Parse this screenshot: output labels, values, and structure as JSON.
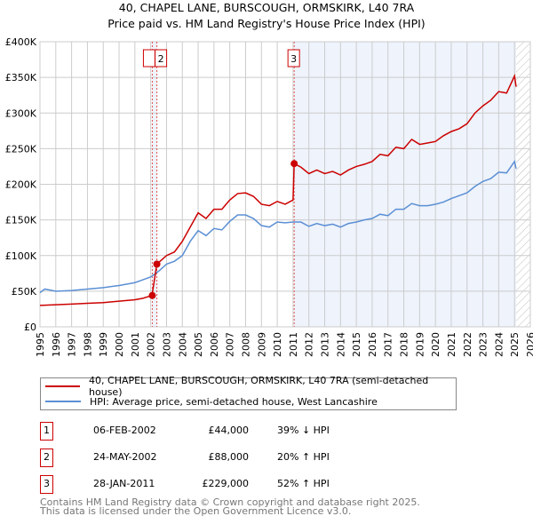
{
  "chart_data": {
    "type": "line",
    "title": "40, CHAPEL LANE, BURSCOUGH, ORMSKIRK, L40 7RA",
    "subtitle": "Price paid vs. HM Land Registry's House Price Index (HPI)",
    "xlim": [
      1995,
      2026
    ],
    "ylim": [
      0,
      400000
    ],
    "x_ticks": [
      "1995",
      "1996",
      "1997",
      "1998",
      "1999",
      "2000",
      "2001",
      "2002",
      "2003",
      "2004",
      "2005",
      "2006",
      "2007",
      "2008",
      "2009",
      "2010",
      "2011",
      "2012",
      "2013",
      "2014",
      "2015",
      "2016",
      "2017",
      "2018",
      "2019",
      "2020",
      "2021",
      "2022",
      "2023",
      "2024",
      "2025",
      "2026"
    ],
    "y_ticks": [
      {
        "v": 0,
        "label": "£0"
      },
      {
        "v": 50000,
        "label": "£50K"
      },
      {
        "v": 100000,
        "label": "£100K"
      },
      {
        "v": 150000,
        "label": "£150K"
      },
      {
        "v": 200000,
        "label": "£200K"
      },
      {
        "v": 250000,
        "label": "£250K"
      },
      {
        "v": 300000,
        "label": "£300K"
      },
      {
        "v": 350000,
        "label": "£350K"
      },
      {
        "v": 400000,
        "label": "£400K"
      }
    ],
    "series": [
      {
        "name": "40, CHAPEL LANE, BURSCOUGH, ORMSKIRK, L40 7RA (semi-detached house)",
        "color": "#cc0000",
        "x": [
          1995,
          1996,
          1997,
          1998,
          1999,
          2000,
          2001,
          2001.5,
          2002.08,
          2002.39,
          2003,
          2003.5,
          2004,
          2004.5,
          2005,
          2005.5,
          2006,
          2006.5,
          2007,
          2007.5,
          2008,
          2008.5,
          2009,
          2009.5,
          2010,
          2010.5,
          2011.0,
          2011.07,
          2011.5,
          2012,
          2012.5,
          2013,
          2013.5,
          2014,
          2014.5,
          2015,
          2015.5,
          2016,
          2016.5,
          2017,
          2017.5,
          2018,
          2018.5,
          2019,
          2019.5,
          2020,
          2020.5,
          2021,
          2021.5,
          2022,
          2022.5,
          2023,
          2023.5,
          2024,
          2024.5,
          2025,
          2025.1
        ],
        "y": [
          30000,
          31000,
          32000,
          33000,
          34000,
          36000,
          38000,
          40000,
          44000,
          88000,
          100000,
          105000,
          120000,
          140000,
          160000,
          152000,
          165000,
          165000,
          178000,
          187000,
          188000,
          183000,
          172000,
          170000,
          176000,
          172000,
          178000,
          229000,
          224000,
          215000,
          220000,
          215000,
          218000,
          213000,
          220000,
          225000,
          228000,
          232000,
          242000,
          240000,
          252000,
          250000,
          263000,
          256000,
          258000,
          260000,
          268000,
          274000,
          278000,
          285000,
          300000,
          310000,
          318000,
          330000,
          328000,
          352000,
          337000
        ]
      },
      {
        "name": "HPI: Average price, semi-detached house, West Lancashire",
        "color": "#5b8fd4",
        "x": [
          1995,
          1995.3,
          1996,
          1997,
          1998,
          1999,
          2000,
          2001,
          2001.5,
          2002,
          2002.5,
          2003,
          2003.5,
          2004,
          2004.5,
          2005,
          2005.5,
          2006,
          2006.5,
          2007,
          2007.5,
          2008,
          2008.5,
          2009,
          2009.5,
          2010,
          2010.5,
          2011,
          2011.5,
          2012,
          2012.5,
          2013,
          2013.5,
          2014,
          2014.5,
          2015,
          2015.5,
          2016,
          2016.5,
          2017,
          2017.5,
          2018,
          2018.5,
          2019,
          2019.5,
          2020,
          2020.5,
          2021,
          2021.5,
          2022,
          2022.5,
          2023,
          2023.5,
          2024,
          2024.5,
          2025,
          2025.1
        ],
        "y": [
          48000,
          53000,
          50000,
          51000,
          53000,
          55000,
          58000,
          62000,
          66000,
          70000,
          78000,
          88000,
          92000,
          100000,
          120000,
          135000,
          128000,
          138000,
          136000,
          148000,
          157000,
          157000,
          152000,
          142000,
          140000,
          147000,
          146000,
          147000,
          147000,
          141000,
          145000,
          142000,
          144000,
          140000,
          145000,
          147000,
          150000,
          152000,
          158000,
          156000,
          165000,
          165000,
          173000,
          170000,
          170000,
          172000,
          175000,
          180000,
          184000,
          188000,
          197000,
          204000,
          208000,
          217000,
          216000,
          232000,
          222000
        ]
      }
    ],
    "sales": [
      {
        "label": "1",
        "x": 2002.1,
        "y": 44000
      },
      {
        "label": "2",
        "x": 2002.39,
        "y": 88000
      },
      {
        "label": "3",
        "x": 2011.07,
        "y": 229000
      }
    ],
    "shaded_from": 2011.07,
    "hatched_from": 2025.1,
    "grid": true,
    "legend": "below"
  },
  "table": [
    {
      "n": "1",
      "date": "06-FEB-2002",
      "price": "£44,000",
      "hpi": "39% ↓ HPI"
    },
    {
      "n": "2",
      "date": "24-MAY-2002",
      "price": "£88,000",
      "hpi": "20% ↑ HPI"
    },
    {
      "n": "3",
      "date": "28-JAN-2011",
      "price": "£229,000",
      "hpi": "52% ↑ HPI"
    }
  ],
  "footer": [
    "Contains HM Land Registry data © Crown copyright and database right 2025.",
    "This data is licensed under the Open Government Licence v3.0."
  ]
}
